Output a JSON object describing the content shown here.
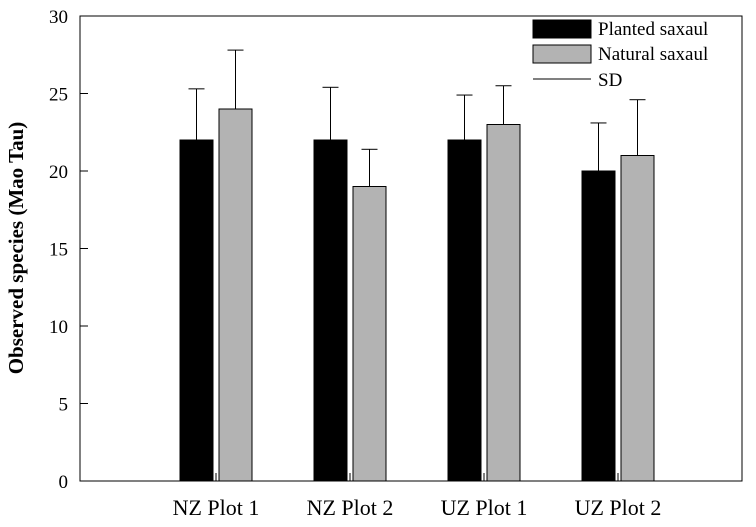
{
  "chart_data": {
    "type": "bar",
    "categories": [
      "NZ Plot 1",
      "NZ Plot 2",
      "UZ Plot 1",
      "UZ Plot 2"
    ],
    "series": [
      {
        "name": "Planted saxaul",
        "color": "#000000",
        "values": [
          22,
          22,
          22,
          20
        ],
        "sd": [
          3.3,
          3.4,
          2.9,
          3.1
        ]
      },
      {
        "name": "Natural saxaul",
        "color": "#b3b3b3",
        "values": [
          24,
          19,
          23,
          21
        ],
        "sd": [
          3.8,
          2.4,
          2.5,
          3.6
        ]
      }
    ],
    "error_legend_label": "SD",
    "ylabel": "Observed species (Mao Tau)",
    "xlabel": "",
    "ylim": [
      0,
      30
    ],
    "yticks": [
      0,
      5,
      10,
      15,
      20,
      25,
      30
    ],
    "grid": false,
    "legend_position": "top-right"
  }
}
